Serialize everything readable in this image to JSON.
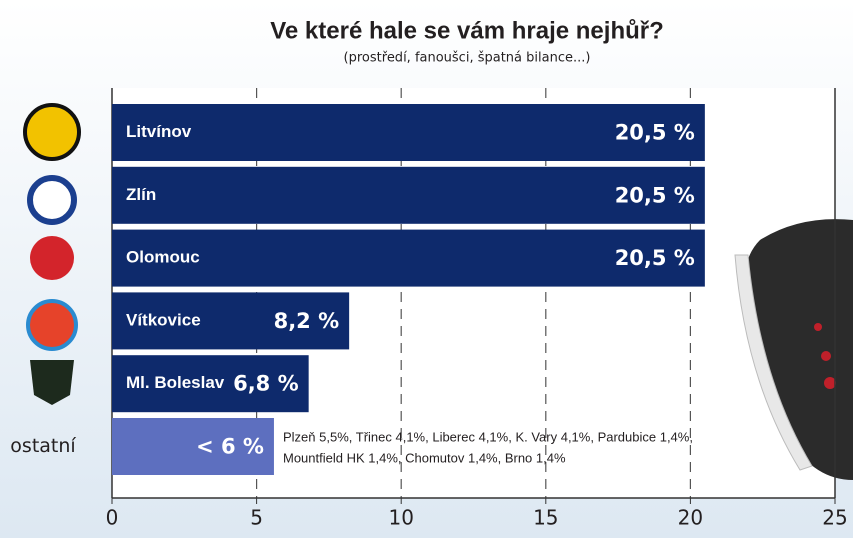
{
  "chart_data": {
    "type": "hbar",
    "title": "Ve které hale se vám hraje nejhůř?",
    "subtitle": "(prostředí, fanoušci, špatná bilance...)",
    "categories": [
      "Litvínov",
      "Zlín",
      "Olomouc",
      "Vítkovice",
      "Ml. Boleslav",
      "ostatní"
    ],
    "values": [
      20.5,
      20.5,
      20.5,
      8.2,
      6.8,
      5.6
    ],
    "value_labels": [
      "20,5 %",
      "20,5 %",
      "20,5 %",
      "8,2 %",
      "6,8 %",
      "< 6 %"
    ],
    "colors": [
      "#0e2a6c",
      "#0e2a6c",
      "#0e2a6c",
      "#0e2a6c",
      "#0e2a6c",
      "#5d6fbf"
    ],
    "xlim": [
      0,
      25
    ],
    "xticks": [
      0,
      5,
      10,
      15,
      20,
      25
    ],
    "grid": true,
    "annotation": [
      "Plzeň 5,5%, Třinec 4,1%, Liberec 4,1%, K. Vary 4,1%, Pardubice 1,4%,",
      "Mountfield HK 1,4%, Chomutov 1,4%, Brno 1,4%"
    ]
  }
}
